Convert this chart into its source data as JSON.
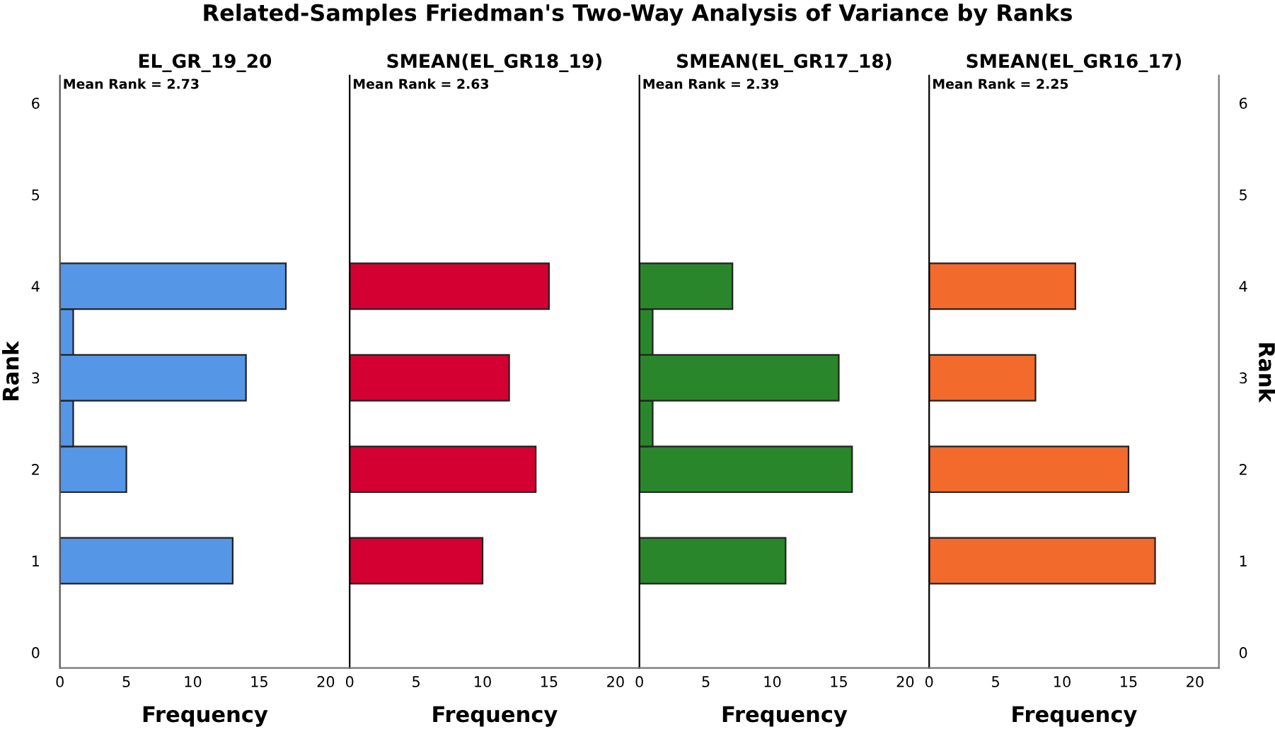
{
  "chart_data": [
    {
      "type": "histogram",
      "orientation": "horizontal",
      "title": "Related-Samples Friedman's Two-Way Analysis of Variance by Ranks",
      "subtitle": "EL_GR_19_20",
      "xlabel": "Frequency",
      "ylabel": "Rank",
      "annotations": [
        "Mean Rank = 2.73"
      ],
      "bins": [
        0.75,
        1.25,
        1.75,
        2.25,
        2.75,
        3.25,
        3.75,
        4.25
      ],
      "values": [
        13,
        0,
        5,
        1,
        14,
        1,
        17
      ],
      "color": "#5596e6",
      "xlim": [
        0,
        21.8
      ],
      "xticks": [
        0,
        5,
        10,
        15,
        20
      ],
      "ylim": [
        -0.17,
        6.3
      ],
      "yticks": [
        0,
        1,
        2,
        3,
        4,
        5,
        6
      ],
      "grid": false,
      "legend": false
    },
    {
      "type": "histogram",
      "orientation": "horizontal",
      "subtitle": "SMEAN(EL_GR18_19)",
      "xlabel": "Frequency",
      "annotations": [
        "Mean Rank = 2.63"
      ],
      "bins": [
        0.75,
        1.25,
        1.75,
        2.25,
        2.75,
        3.25,
        3.75,
        4.25
      ],
      "values": [
        10,
        0,
        14,
        0,
        12,
        0,
        15
      ],
      "color": "#d50032",
      "xlim": [
        0,
        21.8
      ],
      "xticks": [
        0,
        5,
        10,
        15,
        20
      ],
      "ylim": [
        -0.17,
        6.3
      ],
      "tick_labels": "x",
      "grid": false,
      "legend": false
    },
    {
      "type": "histogram",
      "orientation": "horizontal",
      "subtitle": "SMEAN(EL_GR17_18)",
      "xlabel": "Frequency",
      "annotations": [
        "Mean Rank = 2.39"
      ],
      "bins": [
        0.75,
        1.25,
        1.75,
        2.25,
        2.75,
        3.25,
        3.75,
        4.25
      ],
      "values": [
        11,
        0,
        16,
        1,
        15,
        1,
        7
      ],
      "color": "#2a862a",
      "xlim": [
        0,
        21.8
      ],
      "xticks": [
        0,
        5,
        10,
        15,
        20
      ],
      "ylim": [
        -0.17,
        6.3
      ],
      "tick_labels": "x",
      "grid": false,
      "legend": false
    },
    {
      "type": "histogram",
      "orientation": "horizontal",
      "subtitle": "SMEAN(EL_GR16_17)",
      "xlabel": "Frequency",
      "ylabel": "Rank",
      "annotations": [
        "Mean Rank = 2.25"
      ],
      "bins": [
        0.75,
        1.25,
        1.75,
        2.25,
        2.75,
        3.25,
        3.75,
        4.25
      ],
      "values": [
        17,
        0,
        15,
        0,
        8,
        0,
        11
      ],
      "color": "#f26a2c",
      "xlim": [
        0,
        21.8
      ],
      "xticks": [
        0,
        5,
        10,
        15,
        20
      ],
      "ylim": [
        -0.17,
        6.3
      ],
      "yticks": [
        0,
        1,
        2,
        3,
        4,
        5,
        6
      ],
      "grid": false,
      "legend": false
    }
  ]
}
